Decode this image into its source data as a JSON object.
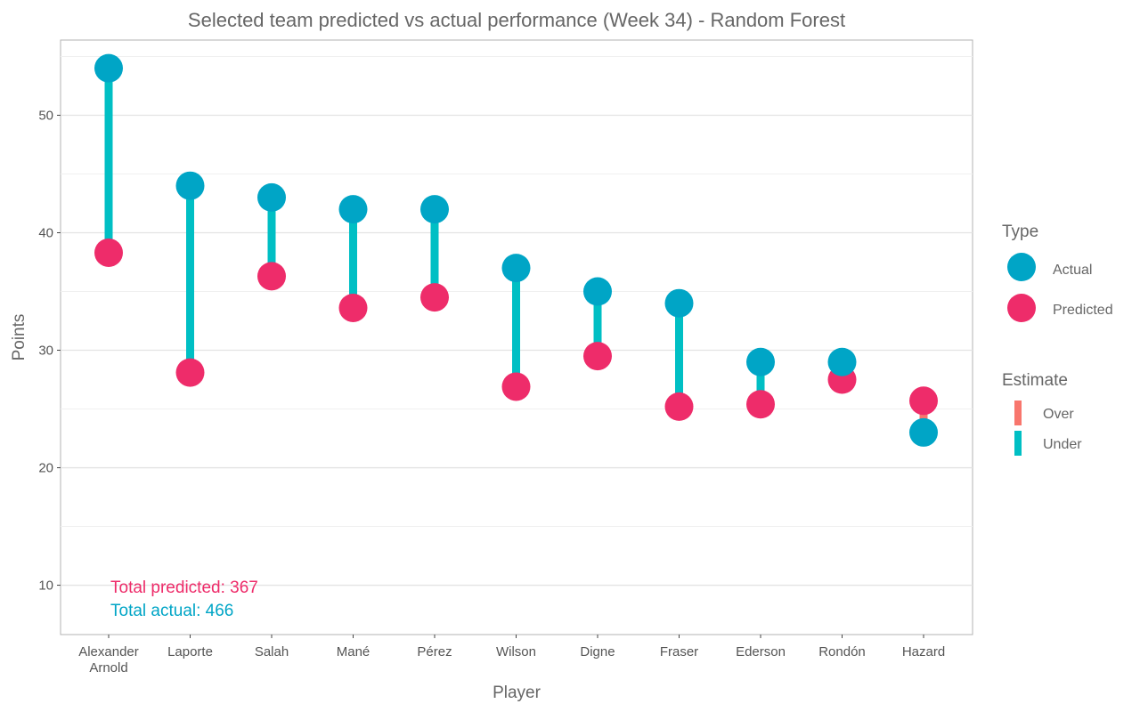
{
  "chart_data": {
    "type": "scatter",
    "title": "Selected team predicted vs actual performance (Week 34) - Random Forest",
    "xlabel": "Player",
    "ylabel": "Points",
    "ylim": [
      5.8,
      56.4
    ],
    "yticks": [
      10,
      20,
      30,
      40,
      50
    ],
    "grid": true,
    "categories": [
      "Alexander\nArnold",
      "Laporte",
      "Salah",
      "Mané",
      "Pérez",
      "Wilson",
      "Digne",
      "Fraser",
      "Ederson",
      "Rondón",
      "Hazard"
    ],
    "series": [
      {
        "name": "Actual",
        "color": "#00A5C6",
        "values": [
          54,
          44,
          43,
          42,
          42,
          37,
          35,
          34,
          29,
          29,
          23
        ]
      },
      {
        "name": "Predicted",
        "color": "#EE2C6A",
        "values": [
          38.3,
          28.1,
          36.3,
          33.6,
          34.5,
          26.9,
          29.5,
          25.2,
          25.4,
          27.5,
          25.7
        ]
      }
    ],
    "legend_type": {
      "title": "Type",
      "entries": [
        "Actual",
        "Predicted"
      ]
    },
    "legend_estimate": {
      "title": "Estimate",
      "entries": [
        {
          "label": "Over",
          "color": "#F8766D"
        },
        {
          "label": "Under",
          "color": "#00BFC4"
        }
      ]
    },
    "legend_position": "right",
    "annotations": {
      "total_predicted": "Total predicted: 367",
      "total_actual": "Total actual: 466"
    }
  }
}
